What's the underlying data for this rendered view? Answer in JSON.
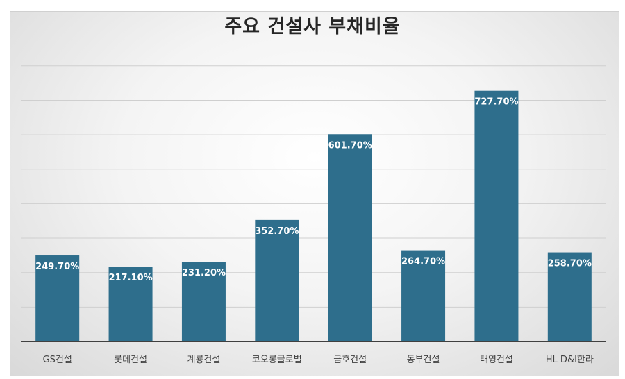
{
  "chart_data": {
    "type": "bar",
    "title": "주요 건설사 부채비율",
    "categories": [
      "GS건설",
      "롯데건설",
      "계룡건설",
      "코오롱글로벌",
      "금호건설",
      "동부건설",
      "태영건설",
      "HL D&I한라"
    ],
    "values": [
      249.7,
      217.1,
      231.2,
      352.7,
      601.7,
      264.7,
      727.7,
      258.7
    ],
    "value_labels": [
      "249.70%",
      "217.10%",
      "231.20%",
      "352.70%",
      "601.70%",
      "264.70%",
      "727.70%",
      "258.70%"
    ],
    "ylim": [
      0,
      800
    ],
    "grid": true,
    "bar_color": "#2e6e8c"
  }
}
